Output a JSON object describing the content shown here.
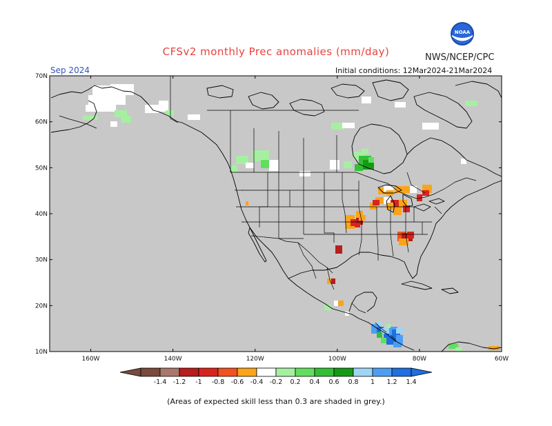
{
  "title": "CFSv2 monthly Prec anomalies (mm/day)",
  "organization": "NWS/NCEP/CPC",
  "logo_text": "NOAA",
  "valid_month": "Sep 2024",
  "initial_conditions": "Initial conditions: 12Mar2024-21Mar2024",
  "footnote": "(Areas of expected skill less than 0.3 are shaded in grey.)",
  "colors": {
    "skill_mask_grey": "#c8c8c8",
    "coast_line": "#000000",
    "title_red": "#e8413c",
    "month_blue": "#3355bb"
  },
  "map": {
    "lon_range": [
      -170,
      -60
    ],
    "lat_range": [
      10,
      70
    ],
    "lon_ticks": [
      "160W",
      "140W",
      "120W",
      "100W",
      "80W",
      "60W"
    ],
    "lat_ticks": [
      "70N",
      "60N",
      "50N",
      "40N",
      "30N",
      "20N",
      "10N"
    ]
  },
  "colorbar": {
    "ticks": [
      "-1.4",
      "-1.2",
      "-1",
      "-0.8",
      "-0.6",
      "-0.4",
      "-0.2",
      "0.2",
      "0.4",
      "0.6",
      "0.8",
      "1",
      "1.2",
      "1.4"
    ],
    "colors": [
      "#7a4a3c",
      "#a9786a",
      "#b71e1c",
      "#d8241e",
      "#f1521f",
      "#fba419",
      "#ffffff",
      "#a5f0a0",
      "#62de5e",
      "#33bf35",
      "#149a15",
      "#9ed5f5",
      "#4d9ef2",
      "#1e6fe0"
    ]
  },
  "anomaly_regions": [
    {
      "name": "Great Lakes / Midwest",
      "sign": "dry",
      "level": "-0.4 to -1.0"
    },
    {
      "name": "Tennessee Valley",
      "sign": "dry",
      "level": "-0.4 to -1.0"
    },
    {
      "name": "Southern Plains",
      "sign": "dry",
      "level": "-0.4 to -1.0"
    },
    {
      "name": "Ontario",
      "sign": "wet",
      "level": "0.2 to 0.8"
    },
    {
      "name": "Pacific Northwest",
      "sign": "wet",
      "level": "0.2 to 0.4"
    },
    {
      "name": "Central America",
      "sign": "wet",
      "level": "0.2 to 1.4"
    }
  ]
}
